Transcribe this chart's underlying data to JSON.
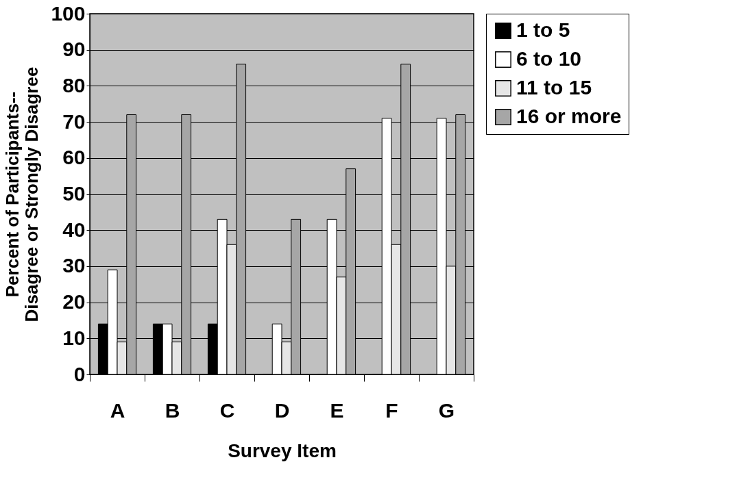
{
  "chart_data": {
    "type": "bar",
    "xlabel": "Survey Item",
    "ylabel": "Percent of Participants--\nDisagree or Strongly Disagree",
    "categories": [
      "A",
      "B",
      "C",
      "D",
      "E",
      "F",
      "G"
    ],
    "series": [
      {
        "name": "1 to 5",
        "color": "#000000",
        "values": [
          14,
          14,
          14,
          0,
          0,
          0,
          0
        ]
      },
      {
        "name": "6 to 10",
        "color": "#ffffff",
        "values": [
          29,
          14,
          43,
          14,
          43,
          71,
          71
        ]
      },
      {
        "name": "11 to 15",
        "color": "#e6e6e6",
        "values": [
          9,
          9,
          36,
          9,
          27,
          36,
          30
        ]
      },
      {
        "name": "16 or more",
        "color": "#a6a6a6",
        "values": [
          72,
          72,
          86,
          43,
          57,
          86,
          72
        ]
      }
    ],
    "ylim": [
      0,
      100
    ],
    "yticks": [
      0,
      10,
      20,
      30,
      40,
      50,
      60,
      70,
      80,
      90,
      100
    ],
    "grid": "y",
    "legend": "right"
  }
}
